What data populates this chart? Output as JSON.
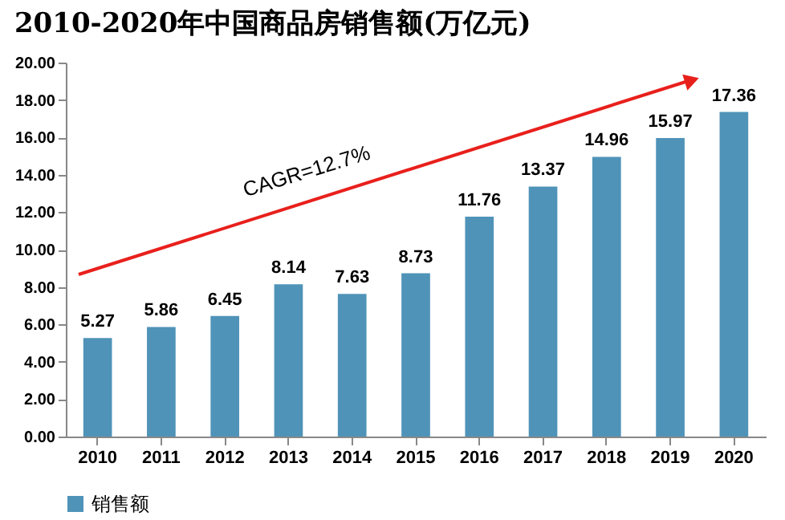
{
  "chart_data": {
    "type": "bar",
    "title": "2010-2020年中国商品房销售额(万亿元)",
    "categories": [
      "2010",
      "2011",
      "2012",
      "2013",
      "2014",
      "2015",
      "2016",
      "2017",
      "2018",
      "2019",
      "2020"
    ],
    "series": [
      {
        "name": "销售额",
        "color": "#4f93b8",
        "values": [
          5.27,
          5.86,
          6.45,
          8.14,
          7.63,
          8.73,
          11.76,
          13.37,
          14.96,
          15.97,
          17.36
        ]
      }
    ],
    "ylim": [
      0,
      20
    ],
    "yticks": [
      {
        "value": 0,
        "label": "0.00"
      },
      {
        "value": 2,
        "label": "2.00"
      },
      {
        "value": 4,
        "label": "4.00"
      },
      {
        "value": 6,
        "label": "6.00"
      },
      {
        "value": 8,
        "label": "8.00"
      },
      {
        "value": 10,
        "label": "10.00"
      },
      {
        "value": 12,
        "label": "12.00"
      },
      {
        "value": 14,
        "label": "14.00"
      },
      {
        "value": 16,
        "label": "16.00"
      },
      {
        "value": 18,
        "label": "18.00"
      },
      {
        "value": 20,
        "label": "20.00"
      }
    ],
    "data_labels": true,
    "legend": "bottom",
    "grid": false,
    "annotations": [
      "CAGR=12.7%"
    ]
  }
}
